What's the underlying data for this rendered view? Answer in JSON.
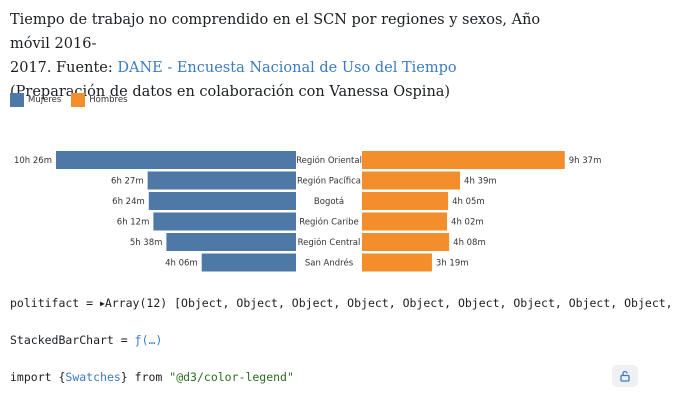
{
  "title": {
    "line1": "Tiempo de trabajo no comprendido en el SCN por regiones y sexos, Año móvil 2016-",
    "line2_prefix": "2017. Fuente: ",
    "line2_link": "DANE - Encuesta Nacional de Uso del Tiempo",
    "line3": "(Preparación de datos en colaboración con Vanessa Ospina)"
  },
  "legend": {
    "women": "Mujeres",
    "men": "Hombres"
  },
  "colors": {
    "women": "#4e79a7",
    "men": "#f28e2c",
    "link": "#3b7bbf"
  },
  "chart_data": {
    "type": "bar",
    "orientation": "horizontal-diverging",
    "categories": [
      "Región Oriental",
      "Región Pacífica",
      "Bogotá",
      "Región Caribe",
      "Región Central",
      "San Andrés"
    ],
    "series": [
      {
        "name": "Mujeres",
        "values_minutes": [
          626,
          387,
          384,
          372,
          338,
          246
        ],
        "labels": [
          "10h 26m",
          "6h 27m",
          "6h 24m",
          "6h 12m",
          "5h 38m",
          "4h 06m"
        ]
      },
      {
        "name": "Hombres",
        "values_minutes": [
          577,
          279,
          245,
          242,
          248,
          199
        ],
        "labels": [
          "9h 37m",
          "4h 39m",
          "4h 05m",
          "4h 02m",
          "4h 08m",
          "3h 19m"
        ]
      }
    ],
    "legend_position": "top-left",
    "grid": false
  },
  "cells": {
    "c1_name": "politifact",
    "c1_eq": " = ",
    "c1_tri": "▶",
    "c1_value": "Array(12) [Object, Object, Object, Object, Object, Object, Object, Object, Object,",
    "c2_name": "StackedBarChart",
    "c2_eq": " = ",
    "c2_value": "ƒ(…)",
    "c3_import": "import ",
    "c3_open": "{",
    "c3_name": "Swatches",
    "c3_close": "}",
    "c3_from": " from ",
    "c3_module": "\"@d3/color-legend\""
  },
  "pin_icon": "unpin-icon"
}
